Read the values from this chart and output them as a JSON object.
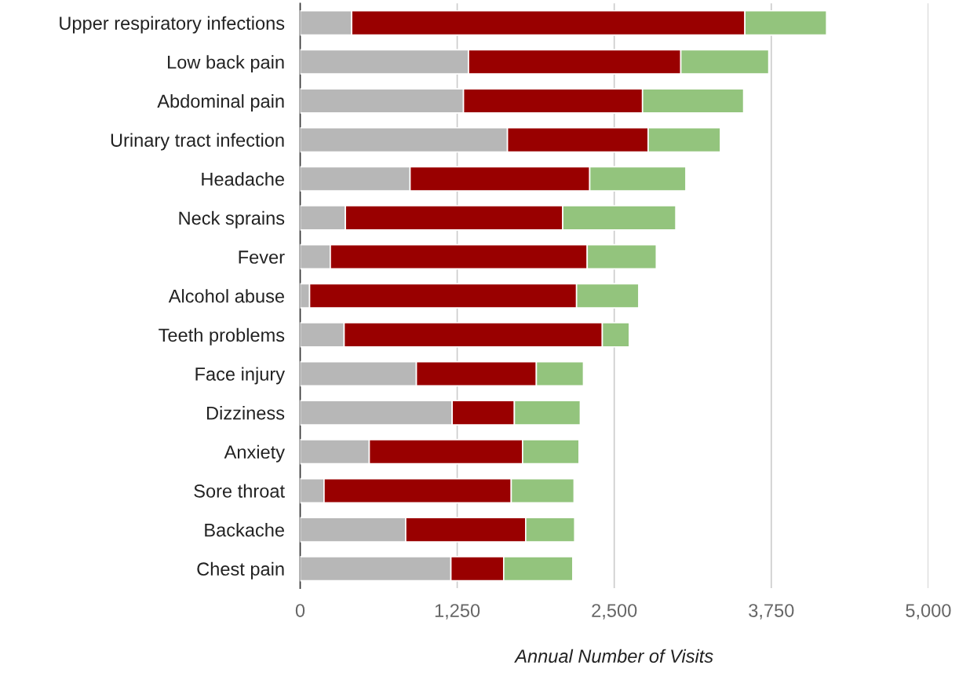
{
  "chart_data": {
    "type": "bar",
    "orientation": "horizontal",
    "stacked": true,
    "xlabel": "Annual Number of Visits",
    "categories": [
      "Upper respiratory infections",
      "Low back pain",
      "Abdominal pain",
      "Urinary tract infection",
      "Headache",
      "Neck sprains",
      "Fever",
      "Alcohol abuse",
      "Teeth problems",
      "Face injury",
      "Dizziness",
      "Anxiety",
      "Sore throat",
      "Backache",
      "Chest pain"
    ],
    "series": [
      {
        "color": "#b7b7b7",
        "values": [
          410,
          1340,
          1300,
          1650,
          875,
          360,
          240,
          75,
          350,
          925,
          1210,
          550,
          190,
          840,
          1200
        ]
      },
      {
        "color": "#990000",
        "values": [
          3130,
          1690,
          1425,
          1120,
          1430,
          1730,
          2045,
          2125,
          2055,
          955,
          495,
          1220,
          1490,
          955,
          420
        ]
      },
      {
        "color": "#93c47d",
        "values": [
          650,
          700,
          805,
          575,
          765,
          900,
          550,
          495,
          215,
          375,
          525,
          450,
          500,
          390,
          550
        ]
      }
    ],
    "xlim": [
      0,
      5000
    ],
    "xticks": [
      0,
      {
        "value": 1250,
        "label": "1,250"
      },
      {
        "value": 2500,
        "label": "2,500"
      },
      {
        "value": 3750,
        "label": "3,750"
      },
      {
        "value": 5000,
        "label": "5,000"
      }
    ],
    "grid": "x"
  }
}
